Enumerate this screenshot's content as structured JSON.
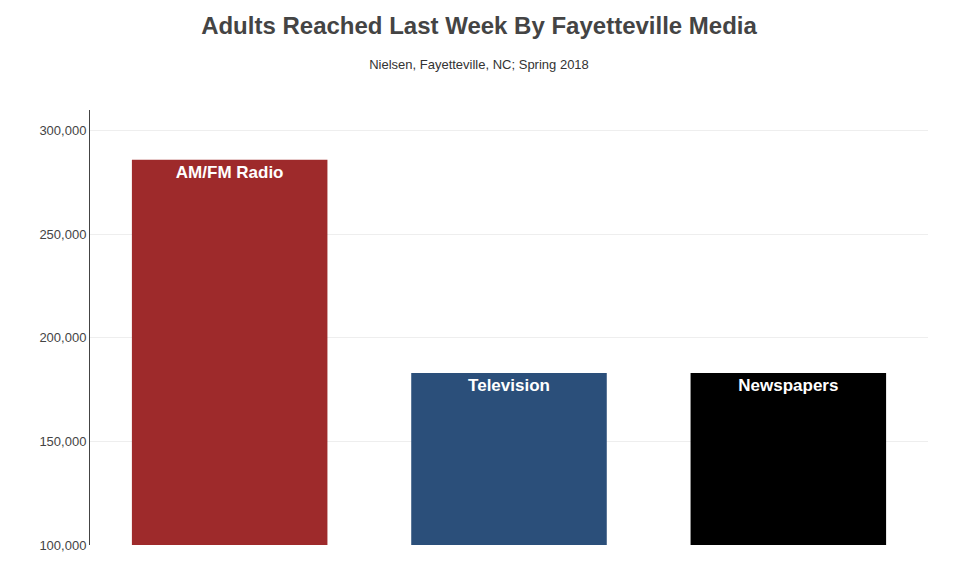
{
  "chart_data": {
    "type": "bar",
    "title": "Adults Reached Last Week By Fayetteville Media",
    "subtitle": "Nielsen, Fayetteville, NC; Spring 2018",
    "categories": [
      "AM/FM Radio",
      "Television",
      "Newspapers"
    ],
    "values": [
      286000,
      183000,
      183000
    ],
    "colors": [
      "#9e2a2b",
      "#2b4f7a",
      "#000000"
    ],
    "ylim": [
      100000,
      310000
    ],
    "yticks": [
      {
        "value": 100000,
        "label": "100,000"
      },
      {
        "value": 150000,
        "label": "150,000"
      },
      {
        "value": 200000,
        "label": "200,000"
      },
      {
        "value": 250000,
        "label": "250,000"
      },
      {
        "value": 300000,
        "label": "300,000"
      }
    ],
    "grid": true,
    "tick_labels": "y"
  }
}
